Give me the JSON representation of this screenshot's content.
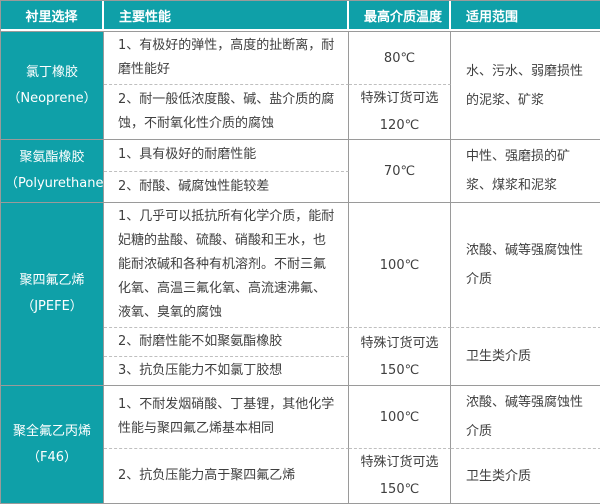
{
  "colors": {
    "teal": "#0fa0a8",
    "border": "#9a9a9a",
    "dashed": "#bfbfbf",
    "text": "#3f3f3f",
    "header_text": "#ffffff"
  },
  "header": {
    "col1": "衬里选择",
    "col2": "主要性能",
    "col3": "最高介质温度",
    "col4": "适用范围"
  },
  "groups": [
    {
      "material": "氯丁橡胶\n（Neoprene）",
      "rows": [
        {
          "perf": "1、有极好的弹性，高度的扯断离，耐磨性能好",
          "temp": "80℃"
        },
        {
          "perf": "2、耐一般低浓度酸、碱、盐介质的腐蚀，不耐氧化性介质的腐蚀",
          "temp": "特殊订货可选\n120℃"
        }
      ],
      "range": "水、污水、弱磨损性的泥浆、矿浆"
    },
    {
      "material": "聚氨酯橡胶\n（Polyurethane）",
      "rows": [
        {
          "perf": "1、具有极好的耐磨性能"
        },
        {
          "perf": "2、耐酸、碱腐蚀性能较差"
        }
      ],
      "temp": "70℃",
      "range": "中性、强磨损的矿浆、煤浆和泥浆"
    },
    {
      "material": "聚四氟乙烯\n（JPEFE）",
      "rows": [
        {
          "perf": "1、几乎可以抵抗所有化学介质，能耐妃糖的盐酸、硫酸、硝酸和王水，也能耐浓碱和各种有机溶剂。不耐三氟化氧、高温三氟化氧、高流速沸氟、液氧、臭氧的腐蚀",
          "temp": "100℃",
          "range": "浓酸、碱等强腐蚀性介质"
        },
        {
          "perf": "2、耐磨性能不如聚氨酯橡胶",
          "temp": "特殊订货可选\n150℃",
          "range": "卫生类介质"
        },
        {
          "perf": "3、抗负压能力不如氯丁胶想"
        }
      ]
    },
    {
      "material": "聚全氟乙丙烯\n（F46）",
      "rows": [
        {
          "perf": "1、不耐发烟硝酸、丁基锂，其他化学性能与聚四氟乙烯基本相同",
          "temp": "100℃",
          "range": "浓酸、碱等强腐蚀性介质"
        },
        {
          "perf": "2、抗负压能力高于聚四氟乙烯",
          "temp": "特殊订货可选\n150℃",
          "range": "卫生类介质"
        }
      ]
    }
  ]
}
